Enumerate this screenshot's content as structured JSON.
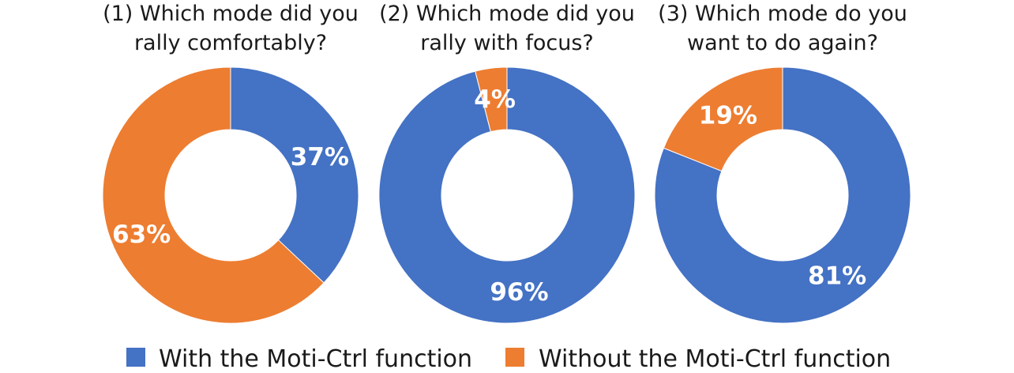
{
  "colors": {
    "with": "#4472C4",
    "without": "#ED7D31",
    "text": "#1a1a1a",
    "label": "#ffffff"
  },
  "legend": [
    {
      "key": "with",
      "label": "With the Moti-Ctrl function"
    },
    {
      "key": "without",
      "label": "Without the Moti-Ctrl function"
    }
  ],
  "chart_data": [
    {
      "type": "pie",
      "donut": true,
      "title_lines": [
        "(1) Which mode did you",
        "rally comfortably?"
      ],
      "slices": [
        {
          "key": "with",
          "name": "With the Moti-Ctrl function",
          "value": 37,
          "label": "37%"
        },
        {
          "key": "without",
          "name": "Without the Moti-Ctrl function",
          "value": 63,
          "label": "63%"
        }
      ]
    },
    {
      "type": "pie",
      "donut": true,
      "title_lines": [
        "(2) Which mode did you",
        "rally with focus?"
      ],
      "slices": [
        {
          "key": "with",
          "name": "With the Moti-Ctrl function",
          "value": 96,
          "label": "96%"
        },
        {
          "key": "without",
          "name": "Without the Moti-Ctrl function",
          "value": 4,
          "label": "4%"
        }
      ]
    },
    {
      "type": "pie",
      "donut": true,
      "title_lines": [
        "(3) Which mode do you",
        "want to do again?"
      ],
      "slices": [
        {
          "key": "with",
          "name": "With the Moti-Ctrl function",
          "value": 81,
          "label": "81%"
        },
        {
          "key": "without",
          "name": "Without the Moti-Ctrl function",
          "value": 19,
          "label": "19%"
        }
      ]
    }
  ]
}
